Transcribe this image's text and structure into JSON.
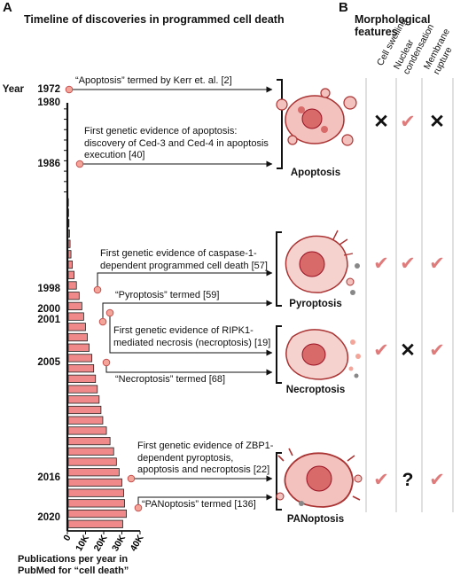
{
  "panel_a": {
    "label": "A",
    "title": "Timeline of discoveries in programmed cell death",
    "year_word": "Year",
    "years": [
      "1972",
      "1980",
      "1986",
      "1998",
      "2000",
      "2001",
      "2005",
      "2016",
      "2020"
    ],
    "annotations": [
      "“Apoptosis” termed by Kerr et. al. [2]",
      "First genetic evidence of apoptosis: discovery of Ced-3 and Ced-4 in apoptosis execution [40]",
      "First genetic evidence of caspase-1-dependent programmed cell death [57]",
      "“Pyroptosis” termed [59]",
      "First genetic evidence of RIPK1-mediated necrosis (necroptosis) [19]",
      "“Necroptosis” termed [68]",
      "First genetic evidence of ZBP1-dependent pyroptosis, apoptosis and necroptosis [22]",
      "“PANoptosis” termed [136]"
    ],
    "cells": [
      "Apoptosis",
      "Pyroptosis",
      "Necroptosis",
      "PANoptosis"
    ],
    "x_ticks": [
      "0",
      "10K",
      "20K",
      "30K",
      "40K"
    ],
    "x_title_line1": "Publications per year in",
    "x_title_line2": "PubMed for “cell death”"
  },
  "panel_b": {
    "label": "B",
    "title": "Morphological features",
    "columns": [
      "Cell swelling",
      "Nuclear condensation",
      "Membrane rupture"
    ],
    "rows": [
      {
        "cell": "Apoptosis",
        "marks": [
          "x",
          "check",
          "x"
        ]
      },
      {
        "cell": "Pyroptosis",
        "marks": [
          "check",
          "check",
          "check"
        ]
      },
      {
        "cell": "Necroptosis",
        "marks": [
          "check",
          "x",
          "check"
        ]
      },
      {
        "cell": "PANoptosis",
        "marks": [
          "check",
          "?",
          "check"
        ]
      }
    ],
    "symbols": {
      "x": "✕",
      "check": "✔",
      "?": "?"
    }
  },
  "chart_data": {
    "type": "bar",
    "orientation": "horizontal",
    "categories": [
      "1980",
      "1981",
      "1982",
      "1983",
      "1984",
      "1985",
      "1986",
      "1987",
      "1988",
      "1989",
      "1990",
      "1991",
      "1992",
      "1993",
      "1994",
      "1995",
      "1996",
      "1997",
      "1998",
      "1999",
      "2000",
      "2001",
      "2002",
      "2003",
      "2004",
      "2005",
      "2006",
      "2007",
      "2008",
      "2009",
      "2010",
      "2011",
      "2012",
      "2013",
      "2014",
      "2015",
      "2016",
      "2017",
      "2018",
      "2019",
      "2020"
    ],
    "values": [
      0,
      0,
      0,
      0,
      0,
      0,
      0,
      0,
      0,
      100,
      200,
      400,
      700,
      1000,
      1500,
      2200,
      3200,
      4500,
      6000,
      7500,
      8500,
      9500,
      10500,
      11500,
      13000,
      14000,
      15000,
      16000,
      17000,
      18000,
      19000,
      21000,
      23000,
      25000,
      26500,
      28000,
      29500,
      30500,
      31000,
      32000,
      30000
    ],
    "xlim": [
      0,
      40000
    ],
    "bar_color": "#f08a8a"
  }
}
